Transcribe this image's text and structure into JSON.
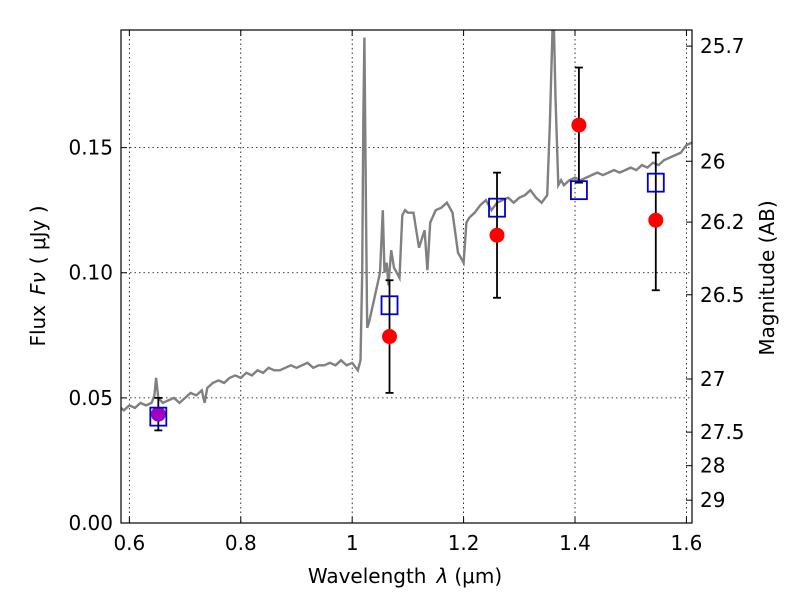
{
  "chart_data": {
    "type": "scatter",
    "xlabel_text": "Wavelength",
    "xlabel_symbol": "λ",
    "xlabel_unit": "(μm)",
    "ylabel_text": "Flux",
    "ylabel_symbol": "Fν",
    "ylabel_unit": "( μJy )",
    "y2label": "Magnitude (AB)",
    "xlim": [
      0.585,
      1.61
    ],
    "ylim": [
      0.0,
      0.197
    ],
    "xticks": [
      0.6,
      0.8,
      1,
      1.2,
      1.4,
      1.6
    ],
    "xtick_labels": [
      "0.6",
      "0.8",
      "1",
      "1.2",
      "1.4",
      "1.6"
    ],
    "yticks": [
      0.0,
      0.05,
      0.1,
      0.15
    ],
    "ytick_labels": [
      "0.00",
      "0.05",
      "0.10",
      "0.15"
    ],
    "right_ticks": [
      {
        "label": "25.7",
        "value": 25.7
      },
      {
        "label": "26",
        "value": 26.0
      },
      {
        "label": "26.2",
        "value": 26.2
      },
      {
        "label": "26.5",
        "value": 26.5
      },
      {
        "label": "27",
        "value": 27.0
      },
      {
        "label": "27.5",
        "value": 27.5
      },
      {
        "label": "28",
        "value": 28.0
      },
      {
        "label": "29",
        "value": 29.0
      }
    ],
    "grid": true,
    "colors": {
      "model": "#808080",
      "observed": "#ff0000",
      "model_photometry": "#0000cc",
      "overlap": "#a000c0",
      "errorbar": "#000000"
    },
    "series": [
      {
        "kind": "line",
        "x": [
          0.585,
          0.59,
          0.6,
          0.61,
          0.62,
          0.63,
          0.64,
          0.645,
          0.648,
          0.652,
          0.656,
          0.66,
          0.67,
          0.68,
          0.69,
          0.7,
          0.71,
          0.72,
          0.73,
          0.735,
          0.74,
          0.75,
          0.76,
          0.77,
          0.78,
          0.79,
          0.8,
          0.81,
          0.82,
          0.83,
          0.84,
          0.85,
          0.86,
          0.87,
          0.88,
          0.89,
          0.9,
          0.91,
          0.92,
          0.93,
          0.94,
          0.95,
          0.96,
          0.97,
          0.98,
          0.99,
          1.0,
          1.01,
          1.015,
          1.018,
          1.02,
          1.022,
          1.025,
          1.027,
          1.03,
          1.04,
          1.05,
          1.055,
          1.058,
          1.062,
          1.065,
          1.07,
          1.075,
          1.08,
          1.085,
          1.09,
          1.095,
          1.1,
          1.11,
          1.12,
          1.13,
          1.135,
          1.14,
          1.15,
          1.16,
          1.17,
          1.18,
          1.19,
          1.2,
          1.205,
          1.21,
          1.22,
          1.23,
          1.24,
          1.25,
          1.26,
          1.27,
          1.28,
          1.29,
          1.3,
          1.31,
          1.32,
          1.33,
          1.34,
          1.35,
          1.355,
          1.36,
          1.362,
          1.365,
          1.37,
          1.375,
          1.38,
          1.39,
          1.4,
          1.41,
          1.42,
          1.43,
          1.44,
          1.45,
          1.46,
          1.47,
          1.48,
          1.49,
          1.5,
          1.51,
          1.52,
          1.53,
          1.54,
          1.55,
          1.56,
          1.57,
          1.58,
          1.59,
          1.6,
          1.61
        ],
        "y": [
          0.046,
          0.045,
          0.047,
          0.046,
          0.048,
          0.047,
          0.048,
          0.051,
          0.058,
          0.05,
          0.049,
          0.048,
          0.049,
          0.05,
          0.048,
          0.05,
          0.052,
          0.051,
          0.053,
          0.048,
          0.054,
          0.056,
          0.057,
          0.056,
          0.058,
          0.059,
          0.058,
          0.06,
          0.059,
          0.061,
          0.06,
          0.062,
          0.061,
          0.061,
          0.062,
          0.063,
          0.062,
          0.063,
          0.064,
          0.062,
          0.063,
          0.063,
          0.064,
          0.063,
          0.065,
          0.063,
          0.064,
          0.061,
          0.065,
          0.1,
          0.16,
          0.194,
          0.12,
          0.078,
          0.08,
          0.09,
          0.1,
          0.125,
          0.1,
          0.104,
          0.095,
          0.109,
          0.102,
          0.1,
          0.098,
          0.123,
          0.125,
          0.124,
          0.124,
          0.11,
          0.117,
          0.101,
          0.12,
          0.125,
          0.126,
          0.128,
          0.124,
          0.108,
          0.104,
          0.12,
          0.122,
          0.124,
          0.127,
          0.129,
          0.125,
          0.128,
          0.129,
          0.13,
          0.128,
          0.13,
          0.131,
          0.133,
          0.13,
          0.128,
          0.131,
          0.16,
          0.2,
          0.2,
          0.17,
          0.135,
          0.137,
          0.135,
          0.137,
          0.138,
          0.137,
          0.138,
          0.139,
          0.14,
          0.139,
          0.14,
          0.141,
          0.14,
          0.141,
          0.142,
          0.141,
          0.143,
          0.142,
          0.144,
          0.143,
          0.145,
          0.146,
          0.147,
          0.148,
          0.151,
          0.152
        ]
      },
      {
        "kind": "errorbar_points",
        "x": [
          0.652,
          1.067,
          1.26,
          1.407,
          1.545
        ],
        "y": [
          0.0435,
          0.0745,
          0.115,
          0.159,
          0.121
        ],
        "yerr_low": [
          0.037,
          0.052,
          0.09,
          0.136,
          0.093
        ],
        "yerr_high": [
          0.05,
          0.097,
          0.14,
          0.182,
          0.148
        ]
      },
      {
        "kind": "squares",
        "x": [
          0.652,
          1.067,
          1.26,
          1.407,
          1.545
        ],
        "y": [
          0.0425,
          0.087,
          0.126,
          0.133,
          0.136
        ]
      }
    ]
  }
}
